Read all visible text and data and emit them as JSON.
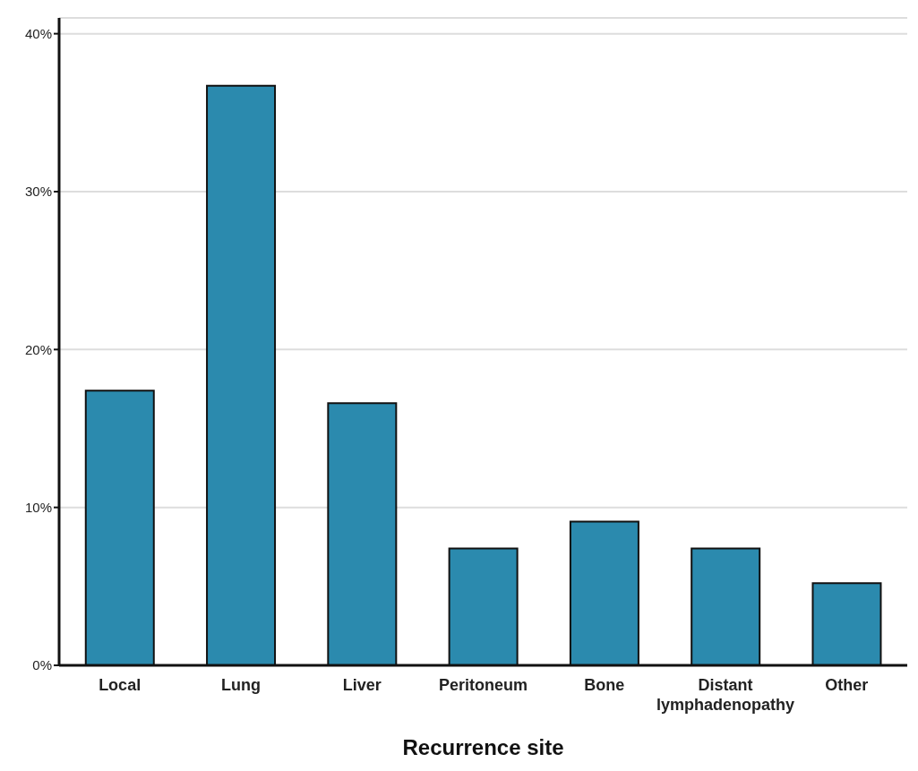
{
  "chart_data": {
    "type": "bar",
    "xlabel": "Recurrence site",
    "categories": [
      "Local",
      "Lung",
      "Liver",
      "Peritoneum",
      "Bone",
      "Distant lymphadenopathy",
      "Other"
    ],
    "values": [
      17.4,
      36.7,
      16.6,
      7.4,
      9.1,
      7.4,
      5.2
    ],
    "color": "#2b8aae",
    "ylim": [
      0,
      41
    ],
    "yticks": [
      {
        "value": 0,
        "label": "0%"
      },
      {
        "value": 10,
        "label": "10%"
      },
      {
        "value": 20,
        "label": "20%"
      },
      {
        "value": 30,
        "label": "30%"
      },
      {
        "value": 40,
        "label": "40%"
      }
    ],
    "grid": "y"
  }
}
